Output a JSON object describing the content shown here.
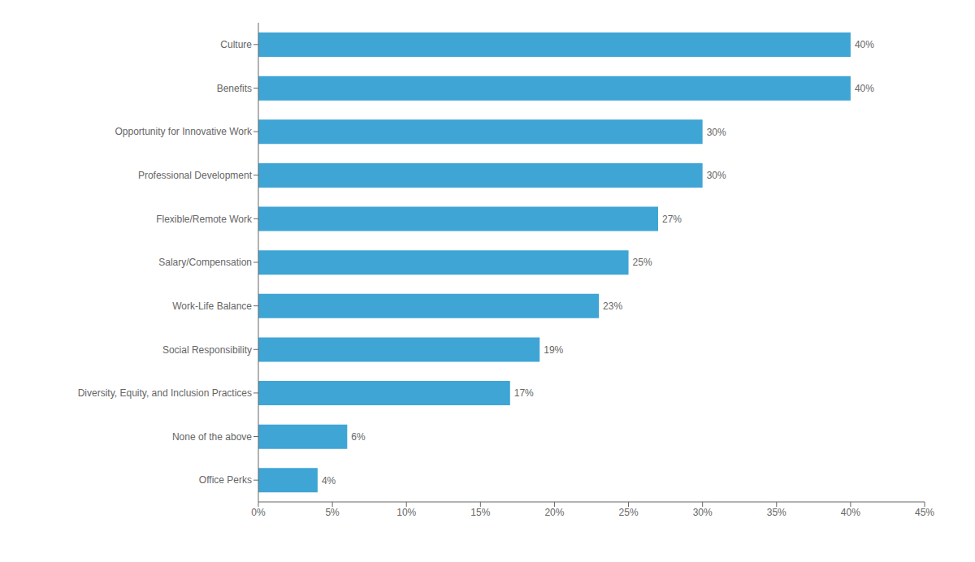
{
  "chart_data": {
    "type": "bar",
    "orientation": "horizontal",
    "categories": [
      "Office Perks",
      "None of the above",
      "Diversity, Equity, and Inclusion Practices",
      "Social Responsibility",
      "Work-Life Balance",
      "Salary/Compensation",
      "Flexible/Remote Work",
      "Professional Development",
      "Opportunity for Innovative Work",
      "Benefits",
      "Culture"
    ],
    "values": [
      4,
      6,
      17,
      19,
      23,
      25,
      27,
      30,
      30,
      40,
      40
    ],
    "value_labels": [
      "4%",
      "6%",
      "17%",
      "19%",
      "23%",
      "25%",
      "27%",
      "30%",
      "30%",
      "40%",
      "40%"
    ],
    "data_labels": true,
    "color": "#3ea5d5",
    "xlim": [
      0,
      45
    ],
    "xticks": [
      {
        "value": 0,
        "label": "0%"
      },
      {
        "value": 5,
        "label": "5%"
      },
      {
        "value": 10,
        "label": "10%"
      },
      {
        "value": 15,
        "label": "15%"
      },
      {
        "value": 20,
        "label": "20%"
      },
      {
        "value": 25,
        "label": "25%"
      },
      {
        "value": 30,
        "label": "30%"
      },
      {
        "value": 35,
        "label": "35%"
      },
      {
        "value": 40,
        "label": "40%"
      },
      {
        "value": 45,
        "label": "45%"
      }
    ],
    "grid": false
  }
}
